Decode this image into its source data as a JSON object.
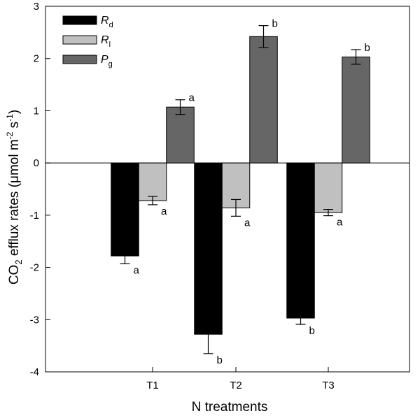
{
  "chart_data": {
    "type": "bar",
    "title": "",
    "xlabel": "N treatments",
    "ylabel": {
      "main": "CO",
      "sub": "2",
      "rest": " efflux rates (μmol m",
      "sup1": "-2",
      "mid": " s",
      "sup2": "-1",
      "end": ")"
    },
    "categories": [
      "T1",
      "T2",
      "T3"
    ],
    "ylim": [
      -4,
      3
    ],
    "yticks": [
      -4,
      -3,
      -2,
      -1,
      0,
      1,
      2,
      3
    ],
    "ytick_labels": [
      "-4",
      "-3",
      "-2",
      "-1",
      "0",
      "1",
      "2",
      "3"
    ],
    "legend_position": "top-left",
    "series": [
      {
        "key": "rd",
        "name": "R",
        "sub": "d",
        "color": "#000000",
        "values": [
          -1.78,
          -3.28,
          -2.97
        ],
        "errors": [
          0.15,
          0.37,
          0.12
        ],
        "labels": [
          "a",
          "b",
          "b"
        ]
      },
      {
        "key": "rl",
        "name": "R",
        "sub": "l",
        "color": "#c0c0c0",
        "values": [
          -0.72,
          -0.86,
          -0.95
        ],
        "errors": [
          0.08,
          0.16,
          0.06
        ],
        "labels": [
          "a",
          "a",
          "a"
        ]
      },
      {
        "key": "pg",
        "name": "P",
        "sub": "g",
        "color": "#666666",
        "values": [
          1.07,
          2.42,
          2.03
        ],
        "errors": [
          0.14,
          0.21,
          0.14
        ],
        "labels": [
          "a",
          "b",
          "b"
        ]
      }
    ]
  }
}
